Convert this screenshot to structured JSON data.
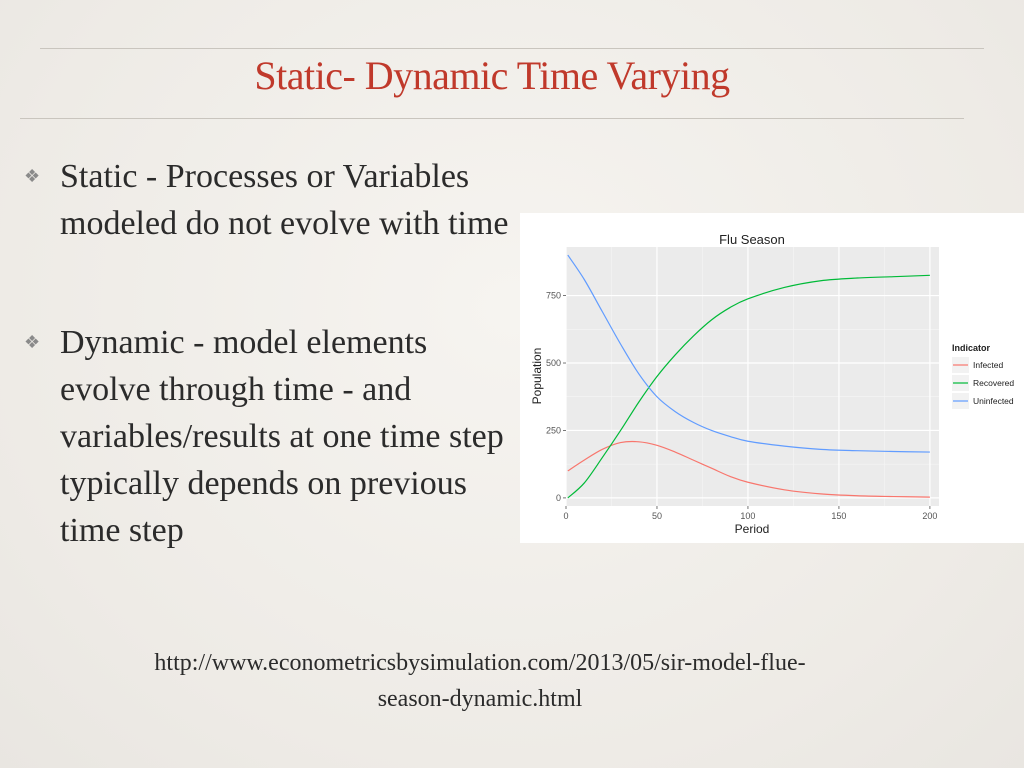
{
  "slide": {
    "title": "Static- Dynamic Time Varying",
    "bullets": [
      {
        "icon": "diamond-bullet-icon",
        "text": "Static - Processes or Variables modeled do not evolve with time"
      },
      {
        "icon": "diamond-bullet-icon",
        "text": "Dynamic - model elements evolve through time - and variables/results at one time step typically depends on previous time step"
      }
    ],
    "source_lines": [
      "http://www.econometricsbysimulation.com/2013/05/sir-model-flue-",
      "season-dynamic.html"
    ]
  },
  "chart_data": {
    "type": "line",
    "title": "Flu Season",
    "xlabel": "Period",
    "ylabel": "Population",
    "xlim": [
      0,
      205
    ],
    "ylim": [
      -30,
      930
    ],
    "x_ticks": [
      0,
      50,
      100,
      150,
      200
    ],
    "y_ticks": [
      0,
      250,
      500,
      750
    ],
    "grid": true,
    "legend": {
      "title": "Indicator",
      "placement": "right"
    },
    "x": [
      1,
      10,
      20,
      30,
      40,
      50,
      60,
      70,
      80,
      90,
      100,
      120,
      140,
      160,
      180,
      200
    ],
    "series": [
      {
        "name": "Infected",
        "color": "#f8766d",
        "values": [
          100,
          140,
          180,
          205,
          208,
          195,
          170,
          140,
          110,
          80,
          58,
          30,
          15,
          8,
          5,
          3
        ]
      },
      {
        "name": "Recovered",
        "color": "#00ba38",
        "values": [
          0,
          55,
          150,
          250,
          355,
          450,
          530,
          600,
          660,
          705,
          738,
          780,
          805,
          815,
          820,
          825
        ]
      },
      {
        "name": "Uninfected",
        "color": "#619cff",
        "values": [
          900,
          810,
          690,
          570,
          460,
          375,
          320,
          280,
          250,
          228,
          210,
          192,
          180,
          175,
          172,
          170
        ]
      }
    ]
  }
}
